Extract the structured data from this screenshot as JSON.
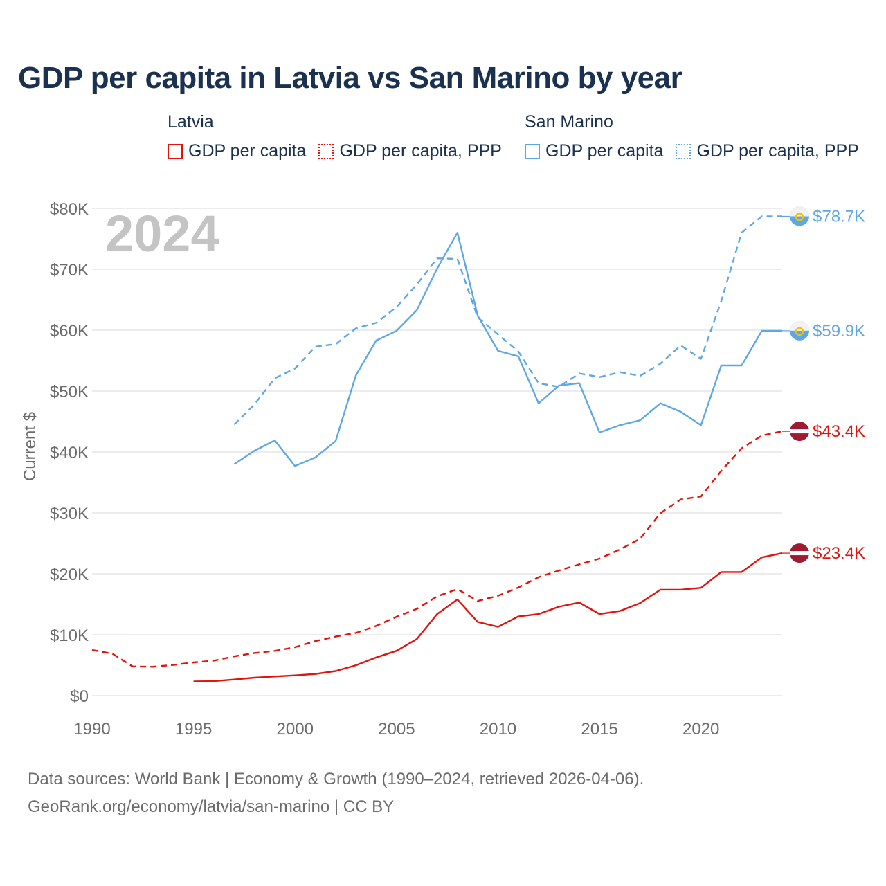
{
  "title": "GDP per capita in Latvia vs San Marino by year",
  "legend": {
    "latvia": {
      "name": "Latvia",
      "items": [
        "GDP per capita",
        "GDP per capita, PPP"
      ]
    },
    "san_marino": {
      "name": "San Marino",
      "items": [
        "GDP per capita",
        "GDP per capita, PPP"
      ]
    }
  },
  "colors": {
    "latvia": "#e3120b",
    "san_marino": "#5ea7e6",
    "grid": "#e6e6e6",
    "axis_text": "#6b6b6b",
    "year_watermark": "#c4c4c4",
    "lv_flag": "#9e1b32"
  },
  "chart_data": {
    "type": "line",
    "title": "GDP per capita in Latvia vs San Marino by year",
    "xlabel": "",
    "ylabel": "Current $",
    "xlim": [
      1990,
      2024
    ],
    "ylim": [
      0,
      80000
    ],
    "x_ticks": [
      1990,
      1995,
      2000,
      2005,
      2010,
      2015,
      2020
    ],
    "x_tick_labels": [
      "1990",
      "1995",
      "2000",
      "2005",
      "2010",
      "2015",
      "2020"
    ],
    "y_ticks": [
      0,
      10000,
      20000,
      30000,
      40000,
      50000,
      60000,
      70000,
      80000
    ],
    "y_tick_labels": [
      "$0",
      "$10K",
      "$20K",
      "$30K",
      "$40K",
      "$50K",
      "$60K",
      "$70K",
      "$80K"
    ],
    "year_label": "2024",
    "grid": true,
    "series": [
      {
        "name": "Latvia GDP per capita",
        "country": "latvia",
        "style": "solid",
        "x": [
          1995,
          1996,
          1997,
          1998,
          1999,
          2000,
          2001,
          2002,
          2003,
          2004,
          2005,
          2006,
          2007,
          2008,
          2009,
          2010,
          2011,
          2012,
          2013,
          2014,
          2015,
          2016,
          2017,
          2018,
          2019,
          2020,
          2021,
          2022,
          2023,
          2024
        ],
        "values": [
          2330,
          2380,
          2650,
          2950,
          3150,
          3330,
          3560,
          4030,
          4990,
          6270,
          7360,
          9300,
          13400,
          15800,
          12100,
          11300,
          13000,
          13400,
          14600,
          15300,
          13400,
          13900,
          15200,
          17400,
          17400,
          17700,
          20300,
          20300,
          22700,
          23400
        ],
        "end_label": "$23.4K"
      },
      {
        "name": "Latvia GDP per capita, PPP",
        "country": "latvia",
        "style": "dashed",
        "x": [
          1990,
          1991,
          1992,
          1993,
          1994,
          1995,
          1996,
          1997,
          1998,
          1999,
          2000,
          2001,
          2002,
          2003,
          2004,
          2005,
          2006,
          2007,
          2008,
          2009,
          2010,
          2011,
          2012,
          2013,
          2014,
          2015,
          2016,
          2017,
          2018,
          2019,
          2020,
          2021,
          2022,
          2023,
          2024
        ],
        "values": [
          7500,
          6900,
          4800,
          4750,
          5050,
          5450,
          5750,
          6450,
          7000,
          7350,
          7950,
          8950,
          9700,
          10300,
          11450,
          12950,
          14250,
          16300,
          17500,
          15550,
          16400,
          17750,
          19450,
          20550,
          21550,
          22500,
          24000,
          25750,
          29950,
          32200,
          32700,
          36900,
          40600,
          42700,
          43400
        ],
        "end_label": "$43.4K"
      },
      {
        "name": "San Marino GDP per capita",
        "country": "san_marino",
        "style": "solid",
        "x": [
          1997,
          1998,
          1999,
          2000,
          2001,
          2002,
          2003,
          2004,
          2005,
          2006,
          2007,
          2008,
          2009,
          2010,
          2011,
          2012,
          2013,
          2014,
          2015,
          2016,
          2017,
          2018,
          2019,
          2020,
          2021,
          2022,
          2023,
          2024
        ],
        "values": [
          38000,
          40200,
          41900,
          37700,
          39100,
          41800,
          52600,
          58300,
          59900,
          63300,
          70100,
          76000,
          62400,
          56600,
          55700,
          48000,
          50900,
          51300,
          43200,
          44400,
          45200,
          48000,
          46600,
          44400,
          54200,
          54200,
          59900,
          59900
        ],
        "end_label": "$59.9K"
      },
      {
        "name": "San Marino GDP per capita, PPP",
        "country": "san_marino",
        "style": "dashed",
        "x": [
          1997,
          1998,
          1999,
          2000,
          2001,
          2002,
          2003,
          2004,
          2005,
          2006,
          2007,
          2008,
          2009,
          2010,
          2011,
          2012,
          2013,
          2014,
          2015,
          2016,
          2017,
          2018,
          2019,
          2020,
          2021,
          2022,
          2023,
          2024
        ],
        "values": [
          44500,
          47800,
          52100,
          53700,
          57300,
          57700,
          60300,
          61200,
          63800,
          67500,
          71800,
          71700,
          62100,
          59300,
          56500,
          51300,
          50700,
          52900,
          52300,
          53100,
          52500,
          54500,
          57500,
          55300,
          64800,
          76000,
          78700,
          78700
        ],
        "end_label": "$78.7K"
      }
    ],
    "source_lines": [
      "Data sources: World Bank | Economy & Growth (1990–2024, retrieved 2026-04-06).",
      "GeoRank.org/economy/latvia/san-marino | CC BY"
    ]
  }
}
